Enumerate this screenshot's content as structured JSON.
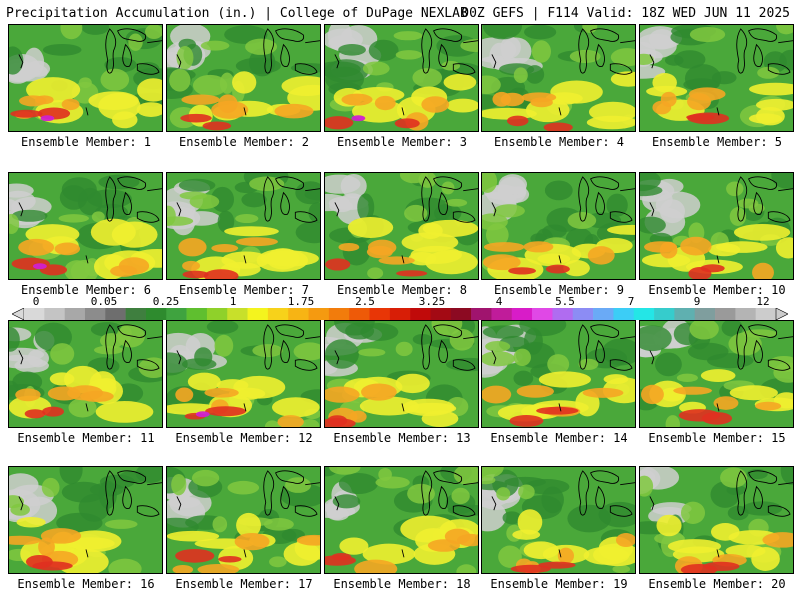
{
  "header": {
    "title_left": "Precipitation Accumulation (in.) | College of DuPage NEXLAB",
    "title_right": "00Z GEFS | F114 Valid: 18Z WED JUN 11 2025"
  },
  "panels": [
    {
      "label": "Ensemble Member: 1"
    },
    {
      "label": "Ensemble Member: 2"
    },
    {
      "label": "Ensemble Member: 3"
    },
    {
      "label": "Ensemble Member: 4"
    },
    {
      "label": "Ensemble Member: 5"
    },
    {
      "label": "Ensemble Member: 6"
    },
    {
      "label": "Ensemble Member: 7"
    },
    {
      "label": "Ensemble Member: 8"
    },
    {
      "label": "Ensemble Member: 9"
    },
    {
      "label": "Ensemble Member: 10"
    },
    {
      "label": "Ensemble Member: 11"
    },
    {
      "label": "Ensemble Member: 12"
    },
    {
      "label": "Ensemble Member: 13"
    },
    {
      "label": "Ensemble Member: 14"
    },
    {
      "label": "Ensemble Member: 15"
    },
    {
      "label": "Ensemble Member: 16"
    },
    {
      "label": "Ensemble Member: 17"
    },
    {
      "label": "Ensemble Member: 18"
    },
    {
      "label": "Ensemble Member: 19"
    },
    {
      "label": "Ensemble Member: 20"
    }
  ],
  "colorbar": {
    "labels": [
      "0",
      "0.05",
      "0.25",
      "1",
      "1.75",
      "2.5",
      "3.25",
      "4",
      "5.5",
      "7",
      "9",
      "12"
    ],
    "colors": [
      "#d9d9d9",
      "#c4c4c4",
      "#a8a8a8",
      "#8c8c8c",
      "#6e6e6e",
      "#3f7f3f",
      "#2e8b2e",
      "#3fa33f",
      "#5fbf2f",
      "#8fd12a",
      "#c8e02a",
      "#f4f41e",
      "#f7d21a",
      "#f7b414",
      "#f59a10",
      "#f27c0c",
      "#ee5a08",
      "#e83606",
      "#d81e06",
      "#c00a0a",
      "#a30a14",
      "#8c0a22",
      "#a0146e",
      "#c01c9a",
      "#d81cc8",
      "#e048e6",
      "#b06cf0",
      "#8c8cf4",
      "#6aaaf6",
      "#3ccdf6",
      "#24e6e6",
      "#36cccc",
      "#5fb0b0",
      "#7f9e9e",
      "#9a9a9a",
      "#b4b4b4",
      "#cccccc"
    ]
  },
  "legend_palette": {
    "gray_low": "#cfcfcf",
    "green_dark": "#2f8a2f",
    "green_mid": "#4aa83a",
    "green_light": "#80c840",
    "yellow": "#f0f030",
    "orange": "#f5a623",
    "red": "#e03020",
    "magenta": "#d020d0",
    "outline": "#000000"
  }
}
